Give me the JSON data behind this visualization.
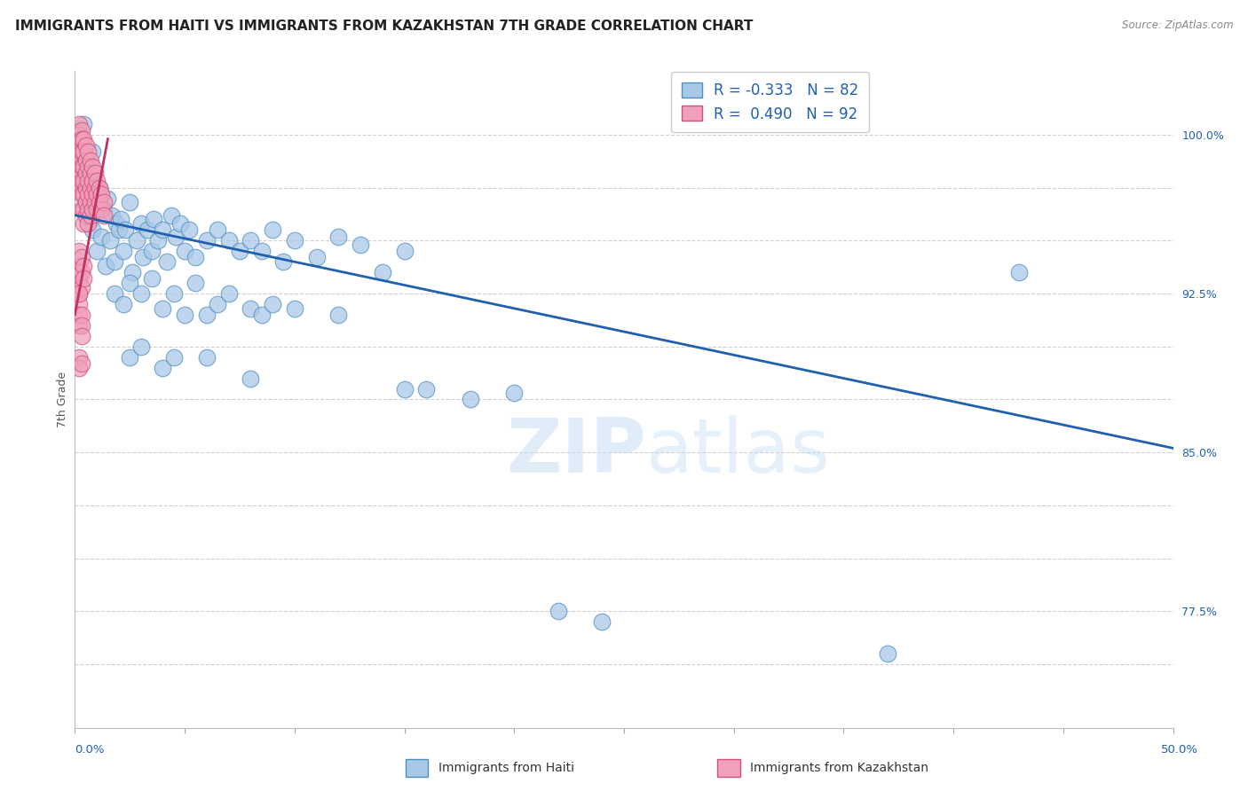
{
  "title": "IMMIGRANTS FROM HAITI VS IMMIGRANTS FROM KAZAKHSTAN 7TH GRADE CORRELATION CHART",
  "source": "Source: ZipAtlas.com",
  "ylabel": "7th Grade",
  "xlim": [
    0.0,
    0.5
  ],
  "ylim": [
    72.0,
    103.0
  ],
  "legend_r_blue": "-0.333",
  "legend_n_blue": "82",
  "legend_r_pink": "0.490",
  "legend_n_pink": "92",
  "blue_scatter": [
    [
      0.003,
      98.5
    ],
    [
      0.004,
      100.5
    ],
    [
      0.005,
      97.8
    ],
    [
      0.007,
      96.0
    ],
    [
      0.008,
      99.2
    ],
    [
      0.008,
      95.5
    ],
    [
      0.01,
      96.8
    ],
    [
      0.01,
      94.5
    ],
    [
      0.011,
      97.5
    ],
    [
      0.012,
      95.2
    ],
    [
      0.013,
      96.5
    ],
    [
      0.014,
      93.8
    ],
    [
      0.015,
      97.0
    ],
    [
      0.016,
      95.0
    ],
    [
      0.017,
      96.2
    ],
    [
      0.018,
      94.0
    ],
    [
      0.019,
      95.8
    ],
    [
      0.02,
      95.5
    ],
    [
      0.021,
      96.0
    ],
    [
      0.022,
      94.5
    ],
    [
      0.023,
      95.5
    ],
    [
      0.025,
      96.8
    ],
    [
      0.026,
      93.5
    ],
    [
      0.028,
      95.0
    ],
    [
      0.03,
      95.8
    ],
    [
      0.031,
      94.2
    ],
    [
      0.033,
      95.5
    ],
    [
      0.035,
      94.5
    ],
    [
      0.036,
      96.0
    ],
    [
      0.038,
      95.0
    ],
    [
      0.04,
      95.5
    ],
    [
      0.042,
      94.0
    ],
    [
      0.044,
      96.2
    ],
    [
      0.046,
      95.2
    ],
    [
      0.048,
      95.8
    ],
    [
      0.05,
      94.5
    ],
    [
      0.052,
      95.5
    ],
    [
      0.055,
      94.2
    ],
    [
      0.06,
      95.0
    ],
    [
      0.065,
      95.5
    ],
    [
      0.07,
      95.0
    ],
    [
      0.075,
      94.5
    ],
    [
      0.08,
      95.0
    ],
    [
      0.085,
      94.5
    ],
    [
      0.09,
      95.5
    ],
    [
      0.095,
      94.0
    ],
    [
      0.1,
      95.0
    ],
    [
      0.11,
      94.2
    ],
    [
      0.12,
      95.2
    ],
    [
      0.13,
      94.8
    ],
    [
      0.14,
      93.5
    ],
    [
      0.15,
      94.5
    ],
    [
      0.018,
      92.5
    ],
    [
      0.022,
      92.0
    ],
    [
      0.025,
      93.0
    ],
    [
      0.03,
      92.5
    ],
    [
      0.035,
      93.2
    ],
    [
      0.04,
      91.8
    ],
    [
      0.045,
      92.5
    ],
    [
      0.05,
      91.5
    ],
    [
      0.055,
      93.0
    ],
    [
      0.06,
      91.5
    ],
    [
      0.065,
      92.0
    ],
    [
      0.07,
      92.5
    ],
    [
      0.08,
      91.8
    ],
    [
      0.085,
      91.5
    ],
    [
      0.09,
      92.0
    ],
    [
      0.1,
      91.8
    ],
    [
      0.12,
      91.5
    ],
    [
      0.025,
      89.5
    ],
    [
      0.03,
      90.0
    ],
    [
      0.04,
      89.0
    ],
    [
      0.045,
      89.5
    ],
    [
      0.06,
      89.5
    ],
    [
      0.08,
      88.5
    ],
    [
      0.15,
      88.0
    ],
    [
      0.16,
      88.0
    ],
    [
      0.18,
      87.5
    ],
    [
      0.2,
      87.8
    ],
    [
      0.22,
      77.5
    ],
    [
      0.24,
      77.0
    ],
    [
      0.43,
      93.5
    ],
    [
      0.37,
      75.5
    ]
  ],
  "pink_scatter": [
    [
      0.002,
      100.5
    ],
    [
      0.002,
      100.0
    ],
    [
      0.002,
      99.5
    ],
    [
      0.002,
      99.2
    ],
    [
      0.002,
      98.8
    ],
    [
      0.002,
      98.2
    ],
    [
      0.002,
      97.5
    ],
    [
      0.003,
      100.2
    ],
    [
      0.003,
      99.8
    ],
    [
      0.003,
      99.2
    ],
    [
      0.003,
      98.5
    ],
    [
      0.003,
      97.8
    ],
    [
      0.003,
      97.2
    ],
    [
      0.003,
      96.5
    ],
    [
      0.004,
      99.8
    ],
    [
      0.004,
      99.2
    ],
    [
      0.004,
      98.5
    ],
    [
      0.004,
      97.8
    ],
    [
      0.004,
      97.2
    ],
    [
      0.004,
      96.5
    ],
    [
      0.004,
      95.8
    ],
    [
      0.005,
      99.5
    ],
    [
      0.005,
      98.8
    ],
    [
      0.005,
      98.2
    ],
    [
      0.005,
      97.5
    ],
    [
      0.005,
      96.8
    ],
    [
      0.005,
      96.2
    ],
    [
      0.006,
      99.2
    ],
    [
      0.006,
      98.5
    ],
    [
      0.006,
      97.8
    ],
    [
      0.006,
      97.2
    ],
    [
      0.006,
      96.5
    ],
    [
      0.006,
      95.8
    ],
    [
      0.007,
      98.8
    ],
    [
      0.007,
      98.2
    ],
    [
      0.007,
      97.5
    ],
    [
      0.007,
      96.8
    ],
    [
      0.007,
      96.2
    ],
    [
      0.008,
      98.5
    ],
    [
      0.008,
      97.8
    ],
    [
      0.008,
      97.2
    ],
    [
      0.008,
      96.5
    ],
    [
      0.009,
      98.2
    ],
    [
      0.009,
      97.5
    ],
    [
      0.009,
      96.8
    ],
    [
      0.01,
      97.8
    ],
    [
      0.01,
      97.2
    ],
    [
      0.01,
      96.5
    ],
    [
      0.011,
      97.5
    ],
    [
      0.011,
      96.8
    ],
    [
      0.012,
      97.2
    ],
    [
      0.012,
      96.5
    ],
    [
      0.013,
      96.8
    ],
    [
      0.013,
      96.2
    ],
    [
      0.002,
      94.5
    ],
    [
      0.002,
      93.8
    ],
    [
      0.002,
      93.2
    ],
    [
      0.002,
      92.5
    ],
    [
      0.003,
      94.2
    ],
    [
      0.003,
      93.5
    ],
    [
      0.003,
      92.8
    ],
    [
      0.004,
      93.8
    ],
    [
      0.004,
      93.2
    ],
    [
      0.002,
      92.0
    ],
    [
      0.002,
      91.5
    ],
    [
      0.002,
      91.0
    ],
    [
      0.003,
      91.5
    ],
    [
      0.003,
      91.0
    ],
    [
      0.003,
      90.5
    ],
    [
      0.002,
      89.5
    ],
    [
      0.002,
      89.0
    ],
    [
      0.003,
      89.2
    ],
    [
      0.002,
      92.5
    ]
  ],
  "blue_line_x": [
    0.0,
    0.5
  ],
  "blue_line_y": [
    96.2,
    85.2
  ],
  "pink_line_x": [
    0.0,
    0.015
  ],
  "pink_line_y": [
    91.5,
    99.8
  ],
  "watermark_zip": "ZIP",
  "watermark_atlas": "atlas",
  "title_fontsize": 11,
  "axis_label_fontsize": 9,
  "tick_fontsize": 9,
  "blue_color": "#A8C8E8",
  "blue_edge_color": "#5090C0",
  "pink_color": "#F0A0B8",
  "pink_edge_color": "#D05080",
  "blue_line_color": "#2060B0",
  "pink_line_color": "#C03060",
  "grid_color": "#CCCCCC",
  "y_ticks": [
    75.0,
    77.5,
    80.0,
    82.5,
    85.0,
    87.5,
    90.0,
    92.5,
    95.0,
    97.5,
    100.0
  ],
  "y_tick_labels": [
    "",
    "77.5%",
    "",
    "",
    "85.0%",
    "",
    "",
    "92.5%",
    "",
    "",
    "100.0%"
  ],
  "bottom_labels": [
    "Immigrants from Haiti",
    "Immigrants from Kazakhstan"
  ]
}
